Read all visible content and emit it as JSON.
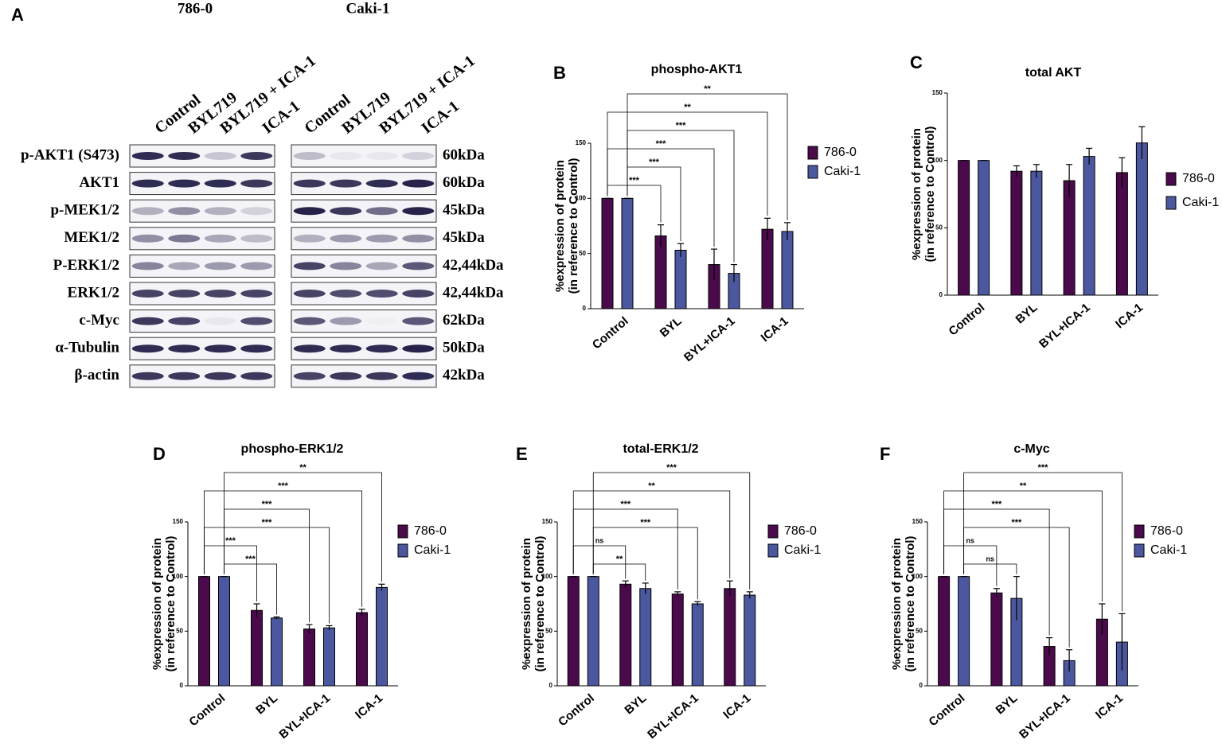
{
  "panel_a": {
    "letter": "A",
    "groups": [
      "786-0",
      "Caki-1"
    ],
    "lanes": [
      "Control",
      "BYL719",
      "BYL719 + ICA-1",
      "ICA-1"
    ],
    "rows": [
      "p-AKT1 (S473)",
      "AKT1",
      "p-MEK1/2",
      "MEK1/2",
      "P-ERK1/2",
      "ERK1/2",
      "c-Myc",
      "α-Tubulin",
      "β-actin"
    ],
    "sizes": [
      "60kDa",
      "60kDa",
      "45kDa",
      "45kDa",
      "42,44kDa",
      "42,44kDa",
      "62kDa",
      "50kDa",
      "42kDa"
    ]
  },
  "chart_data": [
    {
      "type": "bar",
      "letter": "B",
      "title": "phospho-AKT1",
      "y_label": [
        "%expression of protein",
        "(in reference to Control)"
      ],
      "categories": [
        "Control",
        "BYL",
        "BYL+ICA-1",
        "ICA-1"
      ],
      "series": [
        {
          "name": "786-0",
          "color": "#4b0a4b",
          "values": [
            100,
            66,
            40,
            72
          ],
          "errors": [
            0,
            10,
            14,
            10
          ]
        },
        {
          "name": "Caki-1",
          "color": "#4b58a0",
          "values": [
            100,
            53,
            32,
            70
          ],
          "errors": [
            0,
            6,
            8,
            8
          ]
        }
      ],
      "ylim": [
        0,
        150
      ],
      "yticks": [
        0,
        50,
        100,
        150
      ],
      "brackets": [
        {
          "label": "**",
          "from": "Caki-1",
          "to": "Caki-1",
          "category": "ICA-1"
        },
        {
          "label": "**",
          "from": "786-0",
          "to": "786-0",
          "category": "ICA-1"
        },
        {
          "label": "***",
          "from": "Caki-1",
          "to": "Caki-1",
          "category": "BYL+ICA-1"
        },
        {
          "label": "***",
          "from": "786-0",
          "to": "786-0",
          "category": "BYL+ICA-1"
        },
        {
          "label": "***",
          "from": "Caki-1",
          "to": "Caki-1",
          "category": "BYL"
        },
        {
          "label": "***",
          "from": "786-0",
          "to": "786-0",
          "category": "BYL"
        }
      ]
    },
    {
      "type": "bar",
      "letter": "C",
      "title": "total AKT",
      "y_label": [
        "%expression of protein",
        "(in reference to Control)"
      ],
      "categories": [
        "Control",
        "BYL",
        "BYL+ICA-1",
        "ICA-1"
      ],
      "series": [
        {
          "name": "786-0",
          "color": "#4b0a4b",
          "values": [
            100,
            92,
            85,
            91
          ],
          "errors": [
            0,
            4,
            12,
            11
          ]
        },
        {
          "name": "Caki-1",
          "color": "#4b58a0",
          "values": [
            100,
            92,
            103,
            113
          ],
          "errors": [
            0,
            5,
            6,
            12
          ]
        }
      ],
      "ylim": [
        0,
        150
      ],
      "yticks": [
        0,
        50,
        100,
        150
      ],
      "brackets": []
    },
    {
      "type": "bar",
      "letter": "D",
      "title": "phospho-ERK1/2",
      "y_label": [
        "%expression of protein",
        "(in reference to Control)"
      ],
      "categories": [
        "Control",
        "BYL",
        "BYL+ICA-1",
        "ICA-1"
      ],
      "series": [
        {
          "name": "786-0",
          "color": "#4b0a4b",
          "values": [
            100,
            69,
            52,
            67
          ],
          "errors": [
            0,
            6,
            4,
            3
          ]
        },
        {
          "name": "Caki-1",
          "color": "#4b58a0",
          "values": [
            100,
            62,
            53,
            90
          ],
          "errors": [
            0,
            1,
            2,
            3
          ]
        }
      ],
      "ylim": [
        0,
        150
      ],
      "yticks": [
        0,
        50,
        100,
        150
      ],
      "brackets": [
        {
          "label": "**",
          "from": "Caki-1",
          "to": "Caki-1",
          "category": "ICA-1"
        },
        {
          "label": "***",
          "from": "786-0",
          "to": "786-0",
          "category": "ICA-1"
        },
        {
          "label": "***",
          "from": "Caki-1",
          "to": "786-0",
          "category": "BYL+ICA-1"
        },
        {
          "label": "***",
          "from": "786-0",
          "to": "Caki-1",
          "category": "BYL+ICA-1"
        },
        {
          "label": "***",
          "from": "786-0",
          "to": "786-0",
          "category": "BYL"
        },
        {
          "label": "***",
          "from": "Caki-1",
          "to": "Caki-1",
          "category": "BYL"
        }
      ]
    },
    {
      "type": "bar",
      "letter": "E",
      "title": "total-ERK1/2",
      "y_label": [
        "%expression of protein",
        "(in reference to Control)"
      ],
      "categories": [
        "Control",
        "BYL",
        "BYL+ICA-1",
        "ICA-1"
      ],
      "series": [
        {
          "name": "786-0",
          "color": "#4b0a4b",
          "values": [
            100,
            93,
            84,
            89
          ],
          "errors": [
            0,
            3,
            2,
            7
          ]
        },
        {
          "name": "Caki-1",
          "color": "#4b58a0",
          "values": [
            100,
            89,
            75,
            83
          ],
          "errors": [
            0,
            5,
            2,
            3
          ]
        }
      ],
      "ylim": [
        0,
        150
      ],
      "yticks": [
        0,
        50,
        100,
        150
      ],
      "brackets": [
        {
          "label": "***",
          "from": "Caki-1",
          "to": "Caki-1",
          "category": "ICA-1"
        },
        {
          "label": "**",
          "from": "786-0",
          "to": "786-0",
          "category": "ICA-1"
        },
        {
          "label": "***",
          "from": "786-0",
          "to": "786-0",
          "category": "BYL+ICA-1"
        },
        {
          "label": "***",
          "from": "Caki-1",
          "to": "Caki-1",
          "category": "BYL+ICA-1"
        },
        {
          "label": "ns",
          "from": "786-0",
          "to": "786-0",
          "category": "BYL"
        },
        {
          "label": "**",
          "from": "Caki-1",
          "to": "Caki-1",
          "category": "BYL"
        }
      ]
    },
    {
      "type": "bar",
      "letter": "F",
      "title": "c-Myc",
      "y_label": [
        "%expression of protein",
        "(in reference to Control)"
      ],
      "categories": [
        "Control",
        "BYL",
        "BYL+ICA-1",
        "ICA-1"
      ],
      "series": [
        {
          "name": "786-0",
          "color": "#4b0a4b",
          "values": [
            100,
            85,
            36,
            61
          ],
          "errors": [
            0,
            4,
            8,
            14
          ]
        },
        {
          "name": "Caki-1",
          "color": "#4b58a0",
          "values": [
            100,
            80,
            23,
            40
          ],
          "errors": [
            0,
            20,
            10,
            26
          ]
        }
      ],
      "ylim": [
        0,
        150
      ],
      "yticks": [
        0,
        50,
        100,
        150
      ],
      "brackets": [
        {
          "label": "***",
          "from": "Caki-1",
          "to": "Caki-1",
          "category": "ICA-1"
        },
        {
          "label": "**",
          "from": "786-0",
          "to": "786-0",
          "category": "ICA-1"
        },
        {
          "label": "***",
          "from": "786-0",
          "to": "786-0",
          "category": "BYL+ICA-1"
        },
        {
          "label": "***",
          "from": "Caki-1",
          "to": "Caki-1",
          "category": "BYL+ICA-1"
        },
        {
          "label": "ns",
          "from": "786-0",
          "to": "786-0",
          "category": "BYL"
        },
        {
          "label": "ns",
          "from": "Caki-1",
          "to": "Caki-1",
          "category": "BYL"
        }
      ]
    }
  ]
}
